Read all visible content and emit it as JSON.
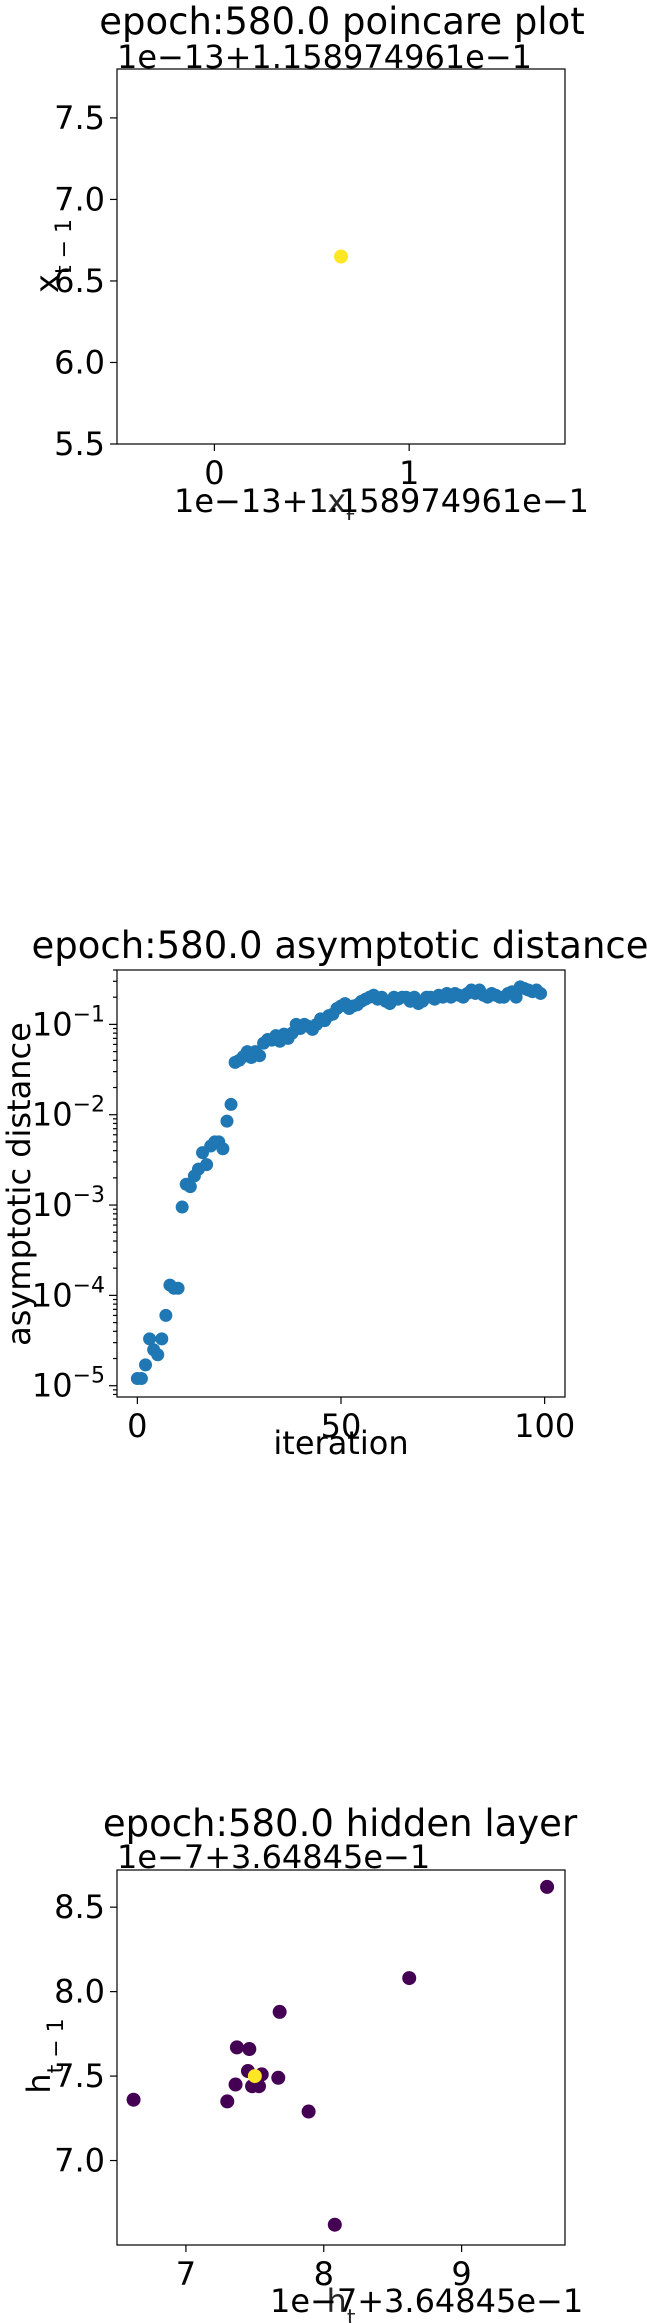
{
  "chart_data": [
    {
      "type": "scatter",
      "title": "epoch:580.0 poincare plot",
      "xlabel": "x_t",
      "ylabel": "x_{t−1}",
      "x_offset_label": "1e−13+1.158974961e−1",
      "y_offset_label": "1e−13+1.158974961e−1",
      "xlim": [
        -0.5,
        1.8
      ],
      "ylim": [
        5.5,
        7.8
      ],
      "x_ticks": [
        {
          "v": 0,
          "label": "0"
        },
        {
          "v": 1,
          "label": "1"
        }
      ],
      "y_ticks": [
        {
          "v": 5.5,
          "label": "5.5"
        },
        {
          "v": 6.0,
          "label": "6.0"
        },
        {
          "v": 6.5,
          "label": "6.5"
        },
        {
          "v": 7.0,
          "label": "7.0"
        },
        {
          "v": 7.5,
          "label": "7.5"
        }
      ],
      "points": [
        {
          "x": 0.65,
          "y": 6.65,
          "color": "#fde725"
        }
      ]
    },
    {
      "type": "scatter",
      "title": "epoch:580.0 asymptotic distance",
      "xlabel": "iteration",
      "ylabel": "asymptotic distance",
      "y_scale": "log",
      "xlim": [
        -5,
        105
      ],
      "ylim": [
        7.5e-06,
        0.4
      ],
      "x_ticks": [
        {
          "v": 0,
          "label": "0"
        },
        {
          "v": 50,
          "label": "50"
        },
        {
          "v": 100,
          "label": "100"
        }
      ],
      "y_ticks": [
        {
          "v": 1e-05,
          "base": "10",
          "exp": "−5"
        },
        {
          "v": 0.0001,
          "base": "10",
          "exp": "−4"
        },
        {
          "v": 0.001,
          "base": "10",
          "exp": "−3"
        },
        {
          "v": 0.01,
          "base": "10",
          "exp": "−2"
        },
        {
          "v": 0.1,
          "base": "10",
          "exp": "−1"
        }
      ],
      "color": "#1f77b4",
      "x": [
        0,
        1,
        2,
        3,
        4,
        5,
        6,
        7,
        8,
        9,
        10,
        11,
        12,
        13,
        14,
        15,
        16,
        17,
        18,
        19,
        20,
        21,
        22,
        23,
        24,
        25,
        26,
        27,
        28,
        29,
        30,
        31,
        32,
        33,
        34,
        35,
        36,
        37,
        38,
        39,
        40,
        41,
        42,
        43,
        44,
        45,
        46,
        47,
        48,
        49,
        50,
        51,
        52,
        53,
        54,
        55,
        56,
        57,
        58,
        59,
        60,
        61,
        62,
        63,
        64,
        65,
        66,
        67,
        68,
        69,
        70,
        71,
        72,
        73,
        74,
        75,
        76,
        77,
        78,
        79,
        80,
        81,
        82,
        83,
        84,
        85,
        86,
        87,
        88,
        89,
        90,
        91,
        92,
        93,
        94,
        95,
        96,
        97,
        98,
        99
      ],
      "y": [
        1.2e-05,
        1.2e-05,
        1.7e-05,
        3.3e-05,
        2.5e-05,
        2.2e-05,
        3.3e-05,
        6e-05,
        0.00013,
        0.00012,
        0.00012,
        0.00095,
        0.0017,
        0.0016,
        0.0021,
        0.0025,
        0.0038,
        0.0028,
        0.0045,
        0.005,
        0.005,
        0.0042,
        0.0085,
        0.013,
        0.038,
        0.04,
        0.044,
        0.05,
        0.043,
        0.05,
        0.045,
        0.062,
        0.068,
        0.067,
        0.075,
        0.065,
        0.078,
        0.07,
        0.08,
        0.1,
        0.09,
        0.1,
        0.095,
        0.088,
        0.1,
        0.115,
        0.11,
        0.125,
        0.13,
        0.15,
        0.16,
        0.17,
        0.15,
        0.16,
        0.165,
        0.18,
        0.19,
        0.2,
        0.21,
        0.19,
        0.2,
        0.18,
        0.17,
        0.2,
        0.19,
        0.2,
        0.2,
        0.18,
        0.2,
        0.17,
        0.18,
        0.2,
        0.2,
        0.19,
        0.21,
        0.2,
        0.22,
        0.2,
        0.22,
        0.21,
        0.2,
        0.22,
        0.24,
        0.22,
        0.24,
        0.21,
        0.2,
        0.22,
        0.21,
        0.2,
        0.2,
        0.22,
        0.23,
        0.2,
        0.26,
        0.25,
        0.24,
        0.23,
        0.24,
        0.22
      ]
    },
    {
      "type": "scatter",
      "title": "epoch:580.0 hidden layer",
      "xlabel": "h_t",
      "ylabel": "h_{t−1}",
      "x_offset_label": "1e−7+3.64845e−1",
      "y_offset_label": "1e−7+3.64845e−1",
      "xlim": [
        6.5,
        9.75
      ],
      "ylim": [
        6.5,
        8.72
      ],
      "x_ticks": [
        {
          "v": 7,
          "label": "7"
        },
        {
          "v": 8,
          "label": "8"
        },
        {
          "v": 9,
          "label": "9"
        }
      ],
      "y_ticks": [
        {
          "v": 7.0,
          "label": "7.0"
        },
        {
          "v": 7.5,
          "label": "7.5"
        },
        {
          "v": 8.0,
          "label": "8.0"
        },
        {
          "v": 8.5,
          "label": "8.5"
        }
      ],
      "points": [
        {
          "x": 9.62,
          "y": 8.62,
          "color": "#440154"
        },
        {
          "x": 8.62,
          "y": 8.08,
          "color": "#440154"
        },
        {
          "x": 7.68,
          "y": 7.88,
          "color": "#440154"
        },
        {
          "x": 7.37,
          "y": 7.67,
          "color": "#440154"
        },
        {
          "x": 7.46,
          "y": 7.66,
          "color": "#440154"
        },
        {
          "x": 7.45,
          "y": 7.53,
          "color": "#440154"
        },
        {
          "x": 7.55,
          "y": 7.51,
          "color": "#440154"
        },
        {
          "x": 7.67,
          "y": 7.49,
          "color": "#440154"
        },
        {
          "x": 7.36,
          "y": 7.45,
          "color": "#440154"
        },
        {
          "x": 7.48,
          "y": 7.44,
          "color": "#440154"
        },
        {
          "x": 7.53,
          "y": 7.44,
          "color": "#440154"
        },
        {
          "x": 6.62,
          "y": 7.36,
          "color": "#440154"
        },
        {
          "x": 7.3,
          "y": 7.35,
          "color": "#440154"
        },
        {
          "x": 7.89,
          "y": 7.29,
          "color": "#440154"
        },
        {
          "x": 8.08,
          "y": 6.62,
          "color": "#440154"
        },
        {
          "x": 7.5,
          "y": 7.5,
          "color": "#fde725"
        }
      ]
    }
  ]
}
